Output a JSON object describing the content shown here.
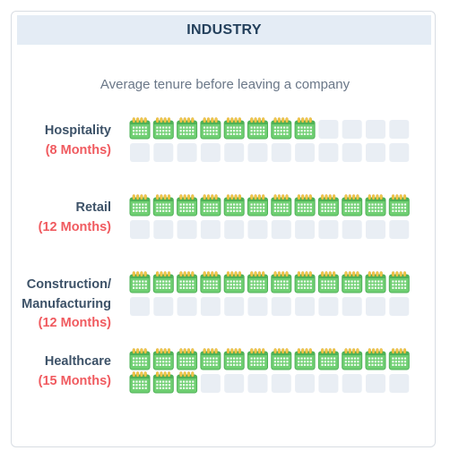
{
  "header": {
    "title": "INDUSTRY"
  },
  "subtitle": "Average tenure before leaving a company",
  "colors": {
    "calendar_fill": "#6fcf72",
    "calendar_border": "#4eb157",
    "calendar_ring": "#f2c94c",
    "empty_slot": "#e9eef4",
    "label_name": "#3d5268",
    "label_months": "#f05a5f"
  },
  "chart_data": {
    "type": "pictograph",
    "unit": "month",
    "icon": "calendar-icon",
    "max_per_category": 24,
    "categories": [
      {
        "name": "Hospitality",
        "months_label": "(8 Months)",
        "value": 8
      },
      {
        "name": "Retail",
        "months_label": "(12 Months)",
        "value": 12
      },
      {
        "name": "Construction/ Manufacturing",
        "name_lines": [
          "Construction/",
          "Manufacturing"
        ],
        "months_label": "(12 Months)",
        "value": 12
      },
      {
        "name": "Healthcare",
        "months_label": "(15 Months)",
        "value": 15
      }
    ]
  }
}
